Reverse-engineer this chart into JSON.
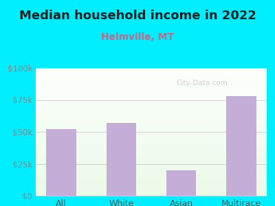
{
  "title": "Median household income in 2022",
  "subtitle": "Helmville, MT",
  "categories": [
    "All",
    "White",
    "Asian",
    "Multirace"
  ],
  "values": [
    52000,
    57000,
    20000,
    78000
  ],
  "bar_color": "#c4aed8",
  "title_fontsize": 13,
  "title_color": "#222222",
  "subtitle_fontsize": 10,
  "subtitle_color": "#cc6688",
  "background_outer": "#00eeff",
  "background_inner": "#e8f5e9",
  "ylim": [
    0,
    100000
  ],
  "yticks": [
    0,
    25000,
    50000,
    75000,
    100000
  ],
  "ytick_labels": [
    "$0",
    "$25k",
    "$50k",
    "$75k",
    "$100k"
  ],
  "watermark": "City-Data.com",
  "grid_color": "#cccccc",
  "tick_label_color": "#888888",
  "xtick_label_color": "#555555"
}
